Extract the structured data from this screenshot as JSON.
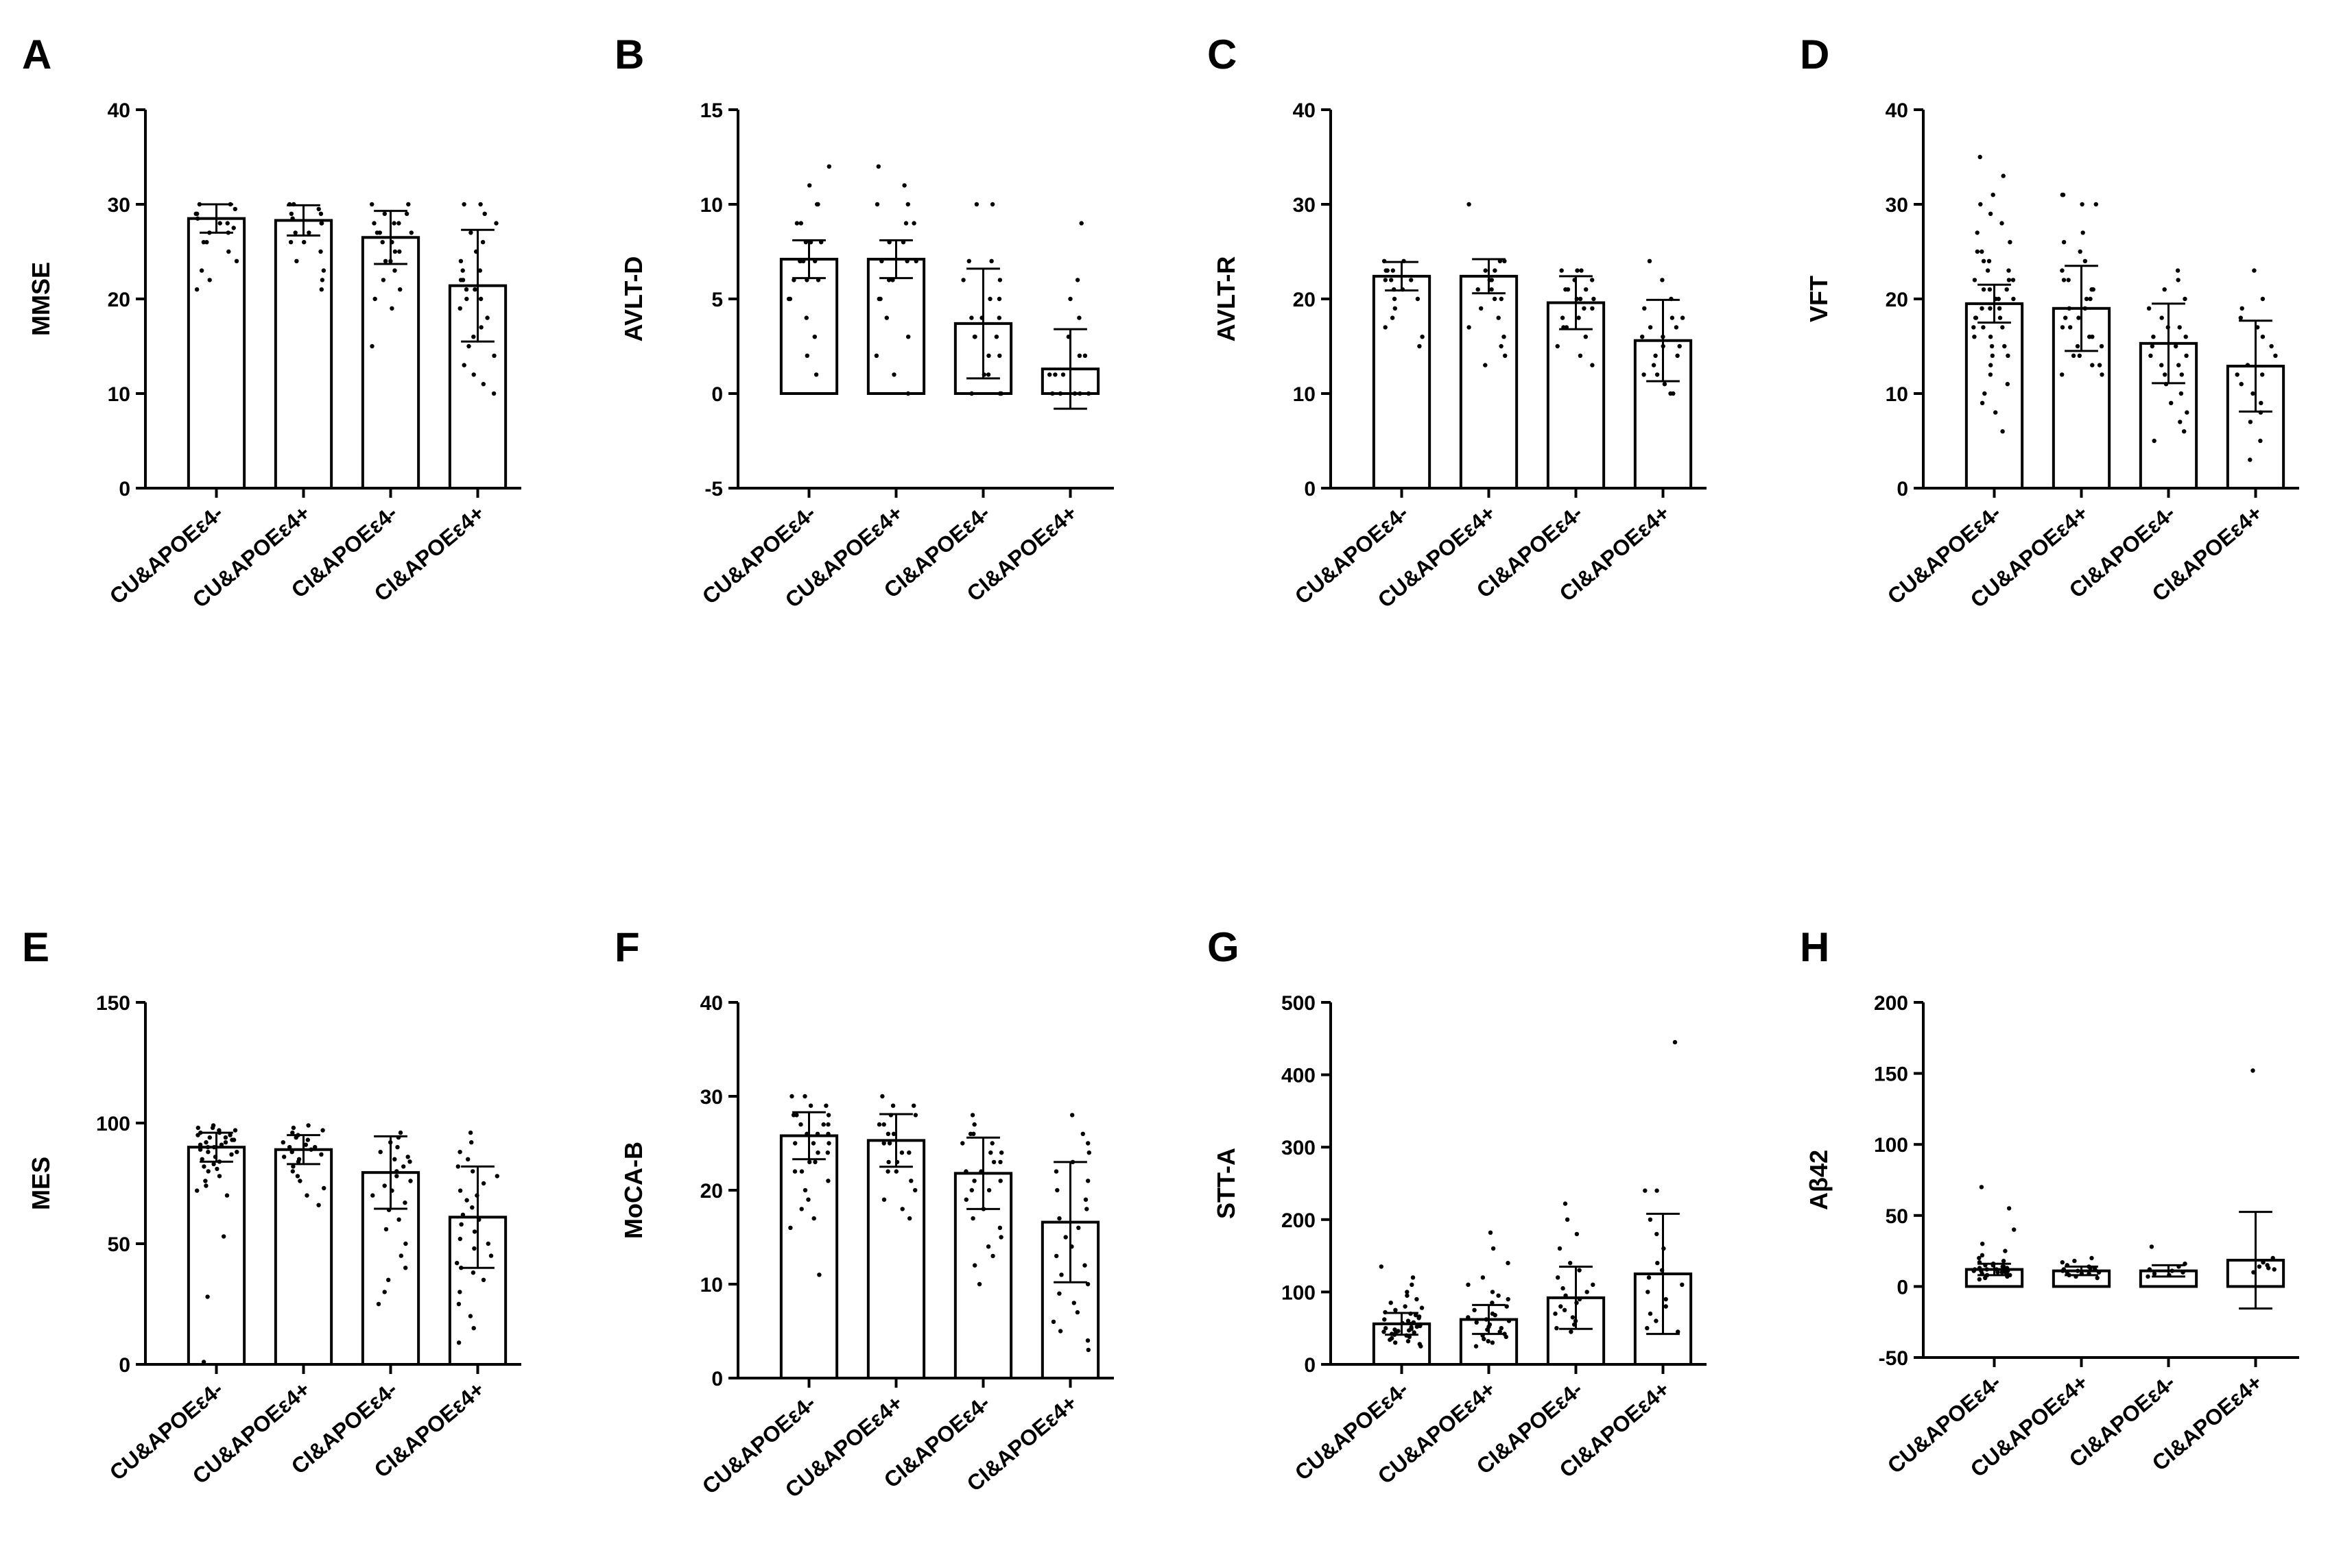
{
  "figure": {
    "background": "#ffffff",
    "ink": "#000000"
  },
  "chart_data": [
    {
      "type": "bar",
      "panel": "A",
      "ylabel": "MMSE",
      "categories": [
        "CU&APOEε4-",
        "CU&APOEε4+",
        "CI&APOEε4-",
        "CI&APOEε4+"
      ],
      "values": [
        28.5,
        28.3,
        26.5,
        21.4
      ],
      "errors": [
        1.5,
        1.6,
        2.8,
        5.9
      ],
      "ylim": [
        0,
        40
      ],
      "yticks": [
        0,
        10,
        20,
        30,
        40
      ],
      "points": [
        [
          30,
          30,
          29.5,
          29,
          29,
          28.5,
          28,
          28,
          27.5,
          27,
          27,
          26,
          26,
          25,
          24,
          23,
          22,
          21
        ],
        [
          30,
          30,
          29.5,
          29,
          29,
          28.5,
          28,
          28,
          27,
          27,
          26,
          26,
          25,
          24,
          23,
          22,
          21
        ],
        [
          30,
          30,
          29,
          29,
          28,
          28,
          28,
          27,
          27,
          27,
          26,
          26,
          25,
          25,
          24,
          24,
          23,
          22,
          21,
          20,
          19,
          15
        ],
        [
          30,
          30,
          29,
          28,
          27,
          26,
          25,
          24,
          23,
          23,
          22,
          22,
          21,
          21,
          20,
          20,
          19,
          18,
          17,
          16,
          15,
          14,
          13,
          12,
          11,
          10
        ]
      ]
    },
    {
      "type": "bar",
      "panel": "B",
      "ylabel": "AVLT-D",
      "categories": [
        "CU&APOEε4-",
        "CU&APOEε4+",
        "CI&APOEε4-",
        "CI&APOEε4+"
      ],
      "values": [
        7.1,
        7.1,
        3.7,
        1.3
      ],
      "errors": [
        1.0,
        1.0,
        2.9,
        2.1
      ],
      "ylim": [
        -5,
        15
      ],
      "yticks": [
        -5,
        0,
        5,
        10,
        15
      ],
      "points": [
        [
          12,
          11,
          10,
          10,
          9,
          9,
          8,
          8,
          8,
          7,
          7,
          7,
          7,
          6,
          6,
          6,
          5,
          5,
          4,
          3,
          2,
          1
        ],
        [
          12,
          11,
          10,
          10,
          9,
          9,
          8,
          8,
          7,
          7,
          7,
          6,
          6,
          5,
          5,
          4,
          3,
          2,
          1,
          0
        ],
        [
          10,
          10,
          7,
          7,
          6,
          6,
          5,
          5,
          4,
          4,
          4,
          3,
          3,
          3,
          2,
          2,
          1,
          1,
          0,
          0,
          0
        ],
        [
          9,
          6,
          5,
          4,
          3,
          2,
          2,
          1,
          1,
          1,
          0,
          0,
          0,
          0,
          0
        ]
      ]
    },
    {
      "type": "bar",
      "panel": "C",
      "ylabel": "AVLT-R",
      "categories": [
        "CU&APOEε4-",
        "CU&APOEε4+",
        "CI&APOEε4-",
        "CI&APOEε4+"
      ],
      "values": [
        22.4,
        22.4,
        19.6,
        15.6
      ],
      "errors": [
        1.5,
        1.8,
        2.8,
        4.3
      ],
      "ylim": [
        0,
        40
      ],
      "yticks": [
        0,
        10,
        20,
        30,
        40
      ],
      "points": [
        [
          24,
          24,
          23,
          23,
          23,
          22,
          22,
          22,
          21,
          21,
          20,
          20,
          19,
          18,
          17,
          16,
          15
        ],
        [
          30,
          24,
          24,
          23,
          23,
          22,
          22,
          21,
          21,
          20,
          20,
          19,
          18,
          17,
          16,
          15,
          14,
          13
        ],
        [
          23,
          23,
          23,
          22,
          22,
          21,
          21,
          21,
          20,
          20,
          20,
          19,
          19,
          18,
          18,
          17,
          17,
          16,
          15,
          14,
          13
        ],
        [
          24,
          22,
          20,
          19,
          18,
          18,
          17,
          17,
          16,
          16,
          15,
          15,
          14,
          14,
          13,
          12,
          12,
          11,
          10,
          10
        ]
      ]
    },
    {
      "type": "bar",
      "panel": "D",
      "ylabel": "VFT",
      "categories": [
        "CU&APOEε4-",
        "CU&APOEε4+",
        "CI&APOEε4-",
        "CI&APOEε4+"
      ],
      "values": [
        19.5,
        19.0,
        15.3,
        12.9
      ],
      "errors": [
        2.0,
        4.5,
        4.2,
        4.8
      ],
      "ylim": [
        0,
        40
      ],
      "yticks": [
        0,
        10,
        20,
        30,
        40
      ],
      "points": [
        [
          35,
          33,
          31,
          30,
          29,
          28,
          27,
          26,
          25,
          25,
          24,
          24,
          23,
          23,
          22,
          22,
          22,
          21,
          21,
          21,
          20,
          20,
          20,
          19,
          19,
          19,
          18,
          18,
          18,
          17,
          17,
          17,
          16,
          16,
          15,
          15,
          14,
          14,
          13,
          12,
          11,
          10,
          9,
          8,
          6
        ],
        [
          31,
          31,
          30,
          30,
          27,
          26,
          25,
          24,
          23,
          22,
          22,
          21,
          21,
          20,
          20,
          19,
          19,
          18,
          18,
          17,
          17,
          16,
          16,
          15,
          15,
          14,
          14,
          13,
          13,
          12,
          12
        ],
        [
          23,
          22,
          21,
          20,
          19,
          18,
          17,
          17,
          16,
          16,
          15,
          15,
          14,
          14,
          13,
          13,
          12,
          12,
          11,
          10,
          9,
          8,
          7,
          6,
          5
        ],
        [
          23,
          20,
          19,
          18,
          17,
          16,
          15,
          14,
          13,
          13,
          12,
          12,
          11,
          10,
          9,
          8,
          7,
          5,
          3
        ]
      ]
    },
    {
      "type": "bar",
      "panel": "E",
      "ylabel": "MES",
      "categories": [
        "CU&APOEε4-",
        "CU&APOEε4+",
        "CI&APOEε4-",
        "CI&APOEε4+"
      ],
      "values": [
        90,
        89,
        79.5,
        61
      ],
      "errors": [
        6,
        6,
        15,
        21
      ],
      "ylim": [
        0,
        150
      ],
      "yticks": [
        0,
        50,
        100,
        150
      ],
      "points": [
        [
          99,
          98,
          98,
          97,
          97,
          96,
          96,
          95,
          95,
          94,
          94,
          93,
          93,
          92,
          92,
          91,
          91,
          90,
          90,
          89,
          88,
          88,
          87,
          86,
          85,
          84,
          83,
          82,
          81,
          80,
          78,
          76,
          74,
          72,
          70,
          53,
          28,
          1
        ],
        [
          99,
          98,
          97,
          96,
          95,
          94,
          93,
          92,
          91,
          90,
          90,
          89,
          88,
          87,
          86,
          85,
          84,
          82,
          80,
          78,
          76,
          73,
          70,
          66
        ],
        [
          96,
          94,
          92,
          90,
          88,
          86,
          85,
          84,
          82,
          80,
          78,
          76,
          74,
          72,
          70,
          67,
          64,
          60,
          56,
          50,
          45,
          40,
          35,
          30,
          25
        ],
        [
          96,
          92,
          88,
          85,
          82,
          80,
          78,
          75,
          72,
          70,
          68,
          65,
          62,
          60,
          58,
          55,
          52,
          50,
          48,
          45,
          42,
          40,
          38,
          35,
          30,
          25,
          20,
          15,
          9
        ]
      ]
    },
    {
      "type": "bar",
      "panel": "F",
      "ylabel": "MoCA-B",
      "categories": [
        "CU&APOEε4-",
        "CU&APOEε4+",
        "CI&APOEε4-",
        "CI&APOEε4+"
      ],
      "values": [
        25.8,
        25.3,
        21.8,
        16.6
      ],
      "errors": [
        2.5,
        2.8,
        3.8,
        6.4
      ],
      "ylim": [
        0,
        40
      ],
      "yticks": [
        0,
        10,
        20,
        30,
        40
      ],
      "points": [
        [
          30,
          30,
          29,
          29,
          28,
          28,
          28,
          27,
          27,
          27,
          26,
          26,
          26,
          25,
          25,
          25,
          24,
          24,
          23,
          23,
          22,
          22,
          21,
          20,
          19,
          18,
          17,
          16,
          11
        ],
        [
          30,
          29,
          29,
          28,
          28,
          27,
          27,
          26,
          26,
          25,
          25,
          24,
          24,
          23,
          23,
          22,
          22,
          21,
          20,
          19,
          18,
          17
        ],
        [
          28,
          27,
          26,
          26,
          25,
          25,
          24,
          24,
          23,
          23,
          22,
          22,
          21,
          21,
          20,
          20,
          19,
          18,
          17,
          16,
          15,
          14,
          13,
          12,
          10
        ],
        [
          28,
          26,
          25,
          24,
          23,
          22,
          21,
          20,
          19,
          18,
          17,
          16,
          15,
          14,
          13,
          12,
          11,
          10,
          9,
          8,
          7,
          6,
          5,
          4,
          3
        ]
      ]
    },
    {
      "type": "bar",
      "panel": "G",
      "ylabel": "STT-A",
      "categories": [
        "CU&APOEε4-",
        "CU&APOEε4+",
        "CI&APOEε4-",
        "CI&APOEε4+"
      ],
      "values": [
        56,
        62,
        92,
        125
      ],
      "errors": [
        15,
        20,
        43,
        83
      ],
      "ylim": [
        0,
        500
      ],
      "yticks": [
        0,
        100,
        200,
        300,
        400,
        500
      ],
      "points": [
        [
          135,
          120,
          110,
          100,
          95,
          90,
          85,
          80,
          78,
          75,
          72,
          70,
          68,
          66,
          64,
          62,
          60,
          58,
          57,
          56,
          55,
          54,
          53,
          52,
          51,
          50,
          49,
          48,
          47,
          46,
          45,
          44,
          43,
          42,
          41,
          40,
          38,
          36,
          34,
          32,
          30,
          28,
          25
        ],
        [
          182,
          160,
          140,
          120,
          110,
          100,
          95,
          90,
          85,
          80,
          75,
          70,
          68,
          65,
          62,
          60,
          58,
          55,
          52,
          50,
          48,
          45,
          42,
          40,
          38,
          35,
          32,
          30,
          25
        ],
        [
          222,
          200,
          180,
          160,
          140,
          130,
          120,
          110,
          105,
          100,
          95,
          90,
          85,
          80,
          75,
          70,
          65,
          60,
          55,
          50,
          45
        ],
        [
          445,
          240,
          240,
          200,
          180,
          160,
          140,
          130,
          120,
          110,
          100,
          90,
          80,
          70,
          60,
          50,
          45
        ]
      ]
    },
    {
      "type": "bar",
      "panel": "H",
      "ylabel": "Aβ42",
      "categories": [
        "CU&APOEε4-",
        "CU&APOEε4+",
        "CI&APOEε4-",
        "CI&APOEε4+"
      ],
      "values": [
        12,
        11,
        11,
        18.5
      ],
      "errors": [
        4,
        3,
        4,
        34
      ],
      "ylim": [
        -50,
        200
      ],
      "yticks": [
        -50,
        0,
        50,
        100,
        150,
        200
      ],
      "points": [
        [
          70,
          55,
          40,
          30,
          25,
          22,
          20,
          18,
          17,
          16,
          15,
          15,
          14,
          14,
          13,
          13,
          12,
          12,
          12,
          11,
          11,
          11,
          10,
          10,
          10,
          9,
          9,
          8,
          8,
          7,
          6,
          5
        ],
        [
          20,
          18,
          17,
          15,
          14,
          13,
          13,
          12,
          12,
          11,
          11,
          10,
          10,
          9,
          9,
          8,
          7,
          6
        ],
        [
          28,
          16,
          14,
          12,
          11,
          10,
          9,
          8,
          7
        ],
        [
          152,
          20,
          17,
          15,
          14,
          13,
          12,
          10
        ]
      ]
    }
  ]
}
